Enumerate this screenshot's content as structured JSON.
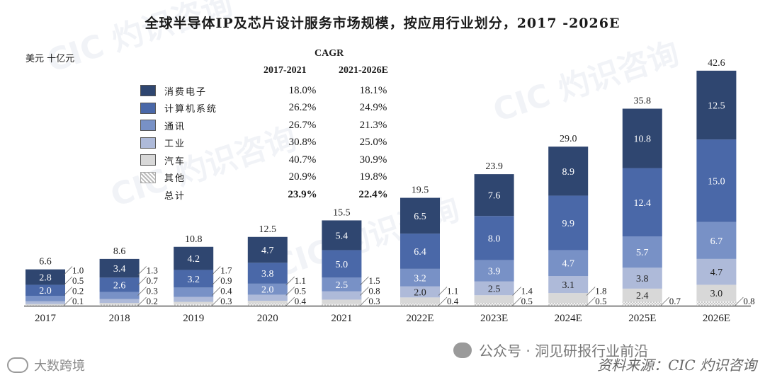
{
  "title": "全球半导体IP及芯片设计服务市场规模，按应用行业划分，2017 -2026E",
  "unit": "美元 十亿元",
  "cagr": {
    "label": "CAGR",
    "period1": "2017-2021",
    "period2": "2021-2026E"
  },
  "legend": [
    {
      "name": "消费电子",
      "cagr1": "18.0%",
      "cagr2": "18.1%",
      "color": "#2f4670",
      "pattern": "solid"
    },
    {
      "name": "计算机系统",
      "cagr1": "26.2%",
      "cagr2": "24.9%",
      "color": "#4a68a8",
      "pattern": "solid"
    },
    {
      "name": "通讯",
      "cagr1": "26.7%",
      "cagr2": "21.3%",
      "color": "#7891c6",
      "pattern": "solid"
    },
    {
      "name": "工业",
      "cagr1": "30.8%",
      "cagr2": "25.0%",
      "color": "#aebad9",
      "pattern": "solid"
    },
    {
      "name": "汽车",
      "cagr1": "40.7%",
      "cagr2": "30.9%",
      "color": "#d8d8d8",
      "pattern": "solid"
    },
    {
      "name": "其他",
      "cagr1": "20.9%",
      "cagr2": "19.8%",
      "color": "#c4c4c4",
      "pattern": "dots"
    },
    {
      "name": "总计",
      "cagr1": "23.9%",
      "cagr2": "22.4%",
      "color": "",
      "pattern": "none",
      "bold": true
    }
  ],
  "chart_data": {
    "type": "bar",
    "stacked": true,
    "title": "全球半导体IP及芯片设计服务市场规模，按应用行业划分，2017 -2026E",
    "ylabel": "美元 十亿元",
    "categories": [
      "2017",
      "2018",
      "2019",
      "2020",
      "2021",
      "2022E",
      "2023E",
      "2024E",
      "2025E",
      "2026E"
    ],
    "series": [
      {
        "name": "其他",
        "values": [
          0.1,
          0.2,
          0.3,
          0.4,
          0.3,
          0.4,
          0.5,
          0.5,
          0.7,
          0.8
        ]
      },
      {
        "name": "汽车",
        "values": [
          0.2,
          0.3,
          0.4,
          0.5,
          0.8,
          1.1,
          1.4,
          1.8,
          2.4,
          3.0
        ]
      },
      {
        "name": "工业",
        "values": [
          0.5,
          0.7,
          0.9,
          1.1,
          1.5,
          2.0,
          2.5,
          3.1,
          3.8,
          4.7
        ]
      },
      {
        "name": "通讯",
        "values": [
          1.0,
          1.3,
          1.7,
          2.0,
          2.5,
          3.2,
          3.9,
          4.7,
          5.7,
          6.7
        ]
      },
      {
        "name": "计算机系统",
        "values": [
          2.0,
          2.6,
          3.2,
          3.8,
          5.0,
          6.4,
          8.0,
          9.9,
          12.4,
          15.0
        ]
      },
      {
        "name": "消费电子",
        "values": [
          2.8,
          3.4,
          4.2,
          4.7,
          5.4,
          6.5,
          7.6,
          8.9,
          10.8,
          12.5
        ]
      }
    ],
    "totals": [
      6.6,
      8.6,
      10.8,
      12.5,
      15.5,
      19.5,
      23.9,
      29.0,
      35.8,
      42.6
    ],
    "ylim": [
      0,
      45
    ]
  },
  "watermarks": {
    "source": "资料来源：CIC 灼识咨询",
    "wechat": "公众号 · 洞见研报行业前沿",
    "brand": "大数跨境",
    "cic": "CIC 灼识咨询"
  }
}
